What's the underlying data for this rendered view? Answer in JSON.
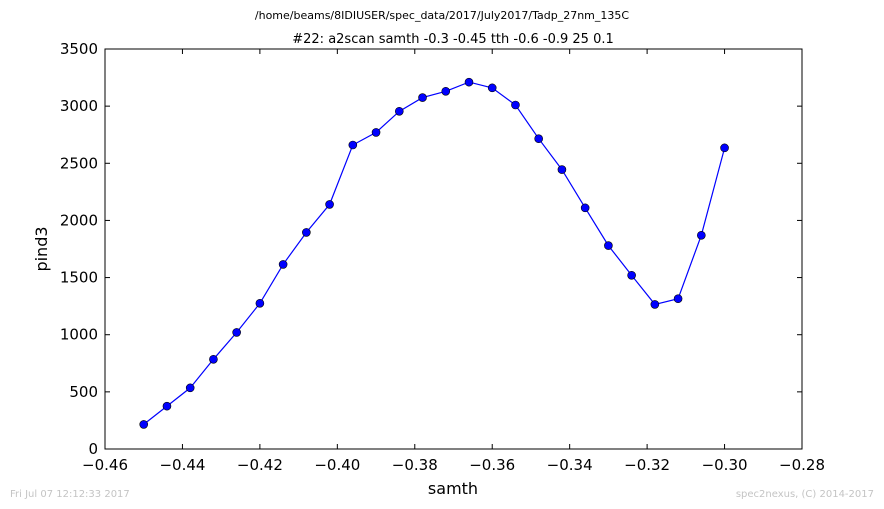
{
  "chart_data": {
    "type": "line",
    "suptitle": "/home/beams/8IDIUSER/spec_data/2017/July2017/Tadp_27nm_135C",
    "title": "#22: a2scan  samth -0.3 -0.45  tth -0.6 -0.9  25 0.1",
    "xlabel": "samth",
    "ylabel": "pind3",
    "xlim": [
      -0.46,
      -0.28
    ],
    "ylim": [
      0,
      3500
    ],
    "xticks": [
      -0.46,
      -0.44,
      -0.42,
      -0.4,
      -0.38,
      -0.36,
      -0.34,
      -0.32,
      -0.3,
      -0.28
    ],
    "xtick_labels": [
      "−0.46",
      "−0.44",
      "−0.42",
      "−0.40",
      "−0.38",
      "−0.36",
      "−0.34",
      "−0.32",
      "−0.30",
      "−0.28"
    ],
    "yticks": [
      0,
      500,
      1000,
      1500,
      2000,
      2500,
      3000,
      3500
    ],
    "ytick_labels": [
      "0",
      "500",
      "1000",
      "1500",
      "2000",
      "2500",
      "3000",
      "3500"
    ],
    "grid": false,
    "series": [
      {
        "color": "#0000ff",
        "marker": "circle",
        "x": [
          -0.45,
          -0.444,
          -0.438,
          -0.432,
          -0.426,
          -0.42,
          -0.414,
          -0.408,
          -0.402,
          -0.396,
          -0.39,
          -0.384,
          -0.378,
          -0.372,
          -0.366,
          -0.36,
          -0.354,
          -0.348,
          -0.342,
          -0.336,
          -0.33,
          -0.324,
          -0.318,
          -0.312,
          -0.306,
          -0.3
        ],
        "y": [
          215,
          375,
          535,
          785,
          1020,
          1275,
          1615,
          1895,
          2140,
          2660,
          2770,
          2955,
          3075,
          3130,
          3210,
          3160,
          3010,
          2715,
          2445,
          2110,
          1780,
          1520,
          1265,
          1315,
          1870,
          2635
        ]
      }
    ]
  },
  "footer": {
    "left": "Fri Jul 07 12:12:33 2017",
    "right": "spec2nexus, (C) 2014-2017"
  }
}
